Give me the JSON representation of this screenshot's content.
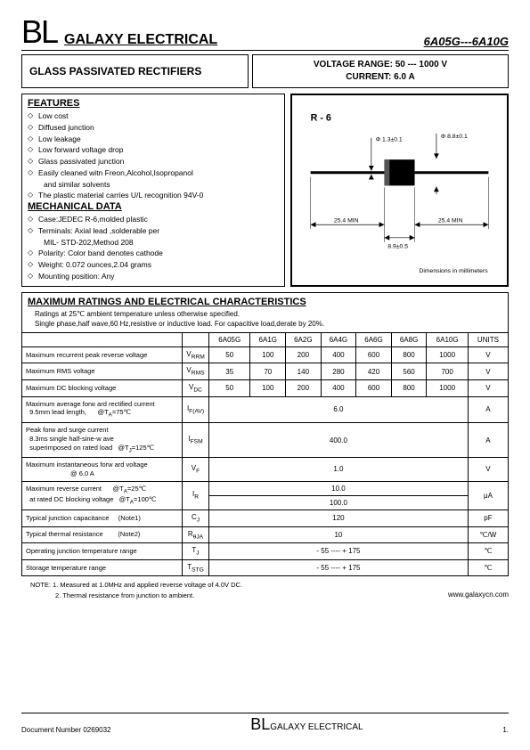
{
  "header": {
    "logo": "BL",
    "company": "GALAXY ELECTRICAL",
    "part_range": "6A05G---6A10G"
  },
  "title": "GLASS PASSIVATED RECTIFIERS",
  "specs": {
    "voltage_label": "VOLTAGE RANGE:",
    "voltage_value": "50 --- 1000 V",
    "current_label": "CURRENT:",
    "current_value": "6.0 A"
  },
  "features": {
    "heading": "FEATURES",
    "items": [
      "Low cost",
      "Diffused junction",
      "Low leakage",
      "Low forward voltage drop",
      "Glass passivated junction",
      "Easily cleaned witn Freon,Alcohol,Isopropanol",
      "and similar solvents",
      "The plastic material carries U/L recognition 94V-0"
    ]
  },
  "mechanical": {
    "heading": "MECHANICAL DATA",
    "items": [
      "Case:JEDEC R-6,molded plastic",
      "Terminals: Axial lead ,solderable per",
      "MIL- STD-202,Method 208",
      "Polarity: Color band denotes cathode",
      "Weight: 0.072 ounces,2.04 grams",
      "Mounting position: Any"
    ]
  },
  "diagram": {
    "package_label": "R - 6",
    "lead_dia": "Φ 1.3±0.1",
    "body_dia": "Φ 8.8±0.1",
    "lead_len_left": "25.4 MIN",
    "lead_len_right": "25.4 MIN",
    "body_len": "8.9±0.5",
    "units": "Dimensions in millimeters"
  },
  "ratings": {
    "heading": "MAXIMUM RATINGS AND ELECTRICAL CHARACTERISTICS",
    "cond1": "Ratings at 25℃ ambient temperature unless otherwise specified.",
    "cond2": "Single phase,half wave,60 Hz,resistive or inductive load. For capacitive load,derate by 20%.",
    "columns": [
      "6A05G",
      "6A1G",
      "6A2G",
      "6A4G",
      "6A6G",
      "6A8G",
      "6A10G"
    ],
    "units_label": "UNITS",
    "rows": [
      {
        "param": "Maximum recurrent peak reverse voltage",
        "sym": "V<sub>RRM</sub>",
        "vals": [
          "50",
          "100",
          "200",
          "400",
          "600",
          "800",
          "1000"
        ],
        "unit": "V"
      },
      {
        "param": "Maximum RMS voltage",
        "sym": "V<sub>RMS</sub>",
        "vals": [
          "35",
          "70",
          "140",
          "280",
          "420",
          "560",
          "700"
        ],
        "unit": "V"
      },
      {
        "param": "Maximum DC blocking voltage",
        "sym": "V<sub>DC</sub>",
        "vals": [
          "50",
          "100",
          "200",
          "400",
          "600",
          "800",
          "1000"
        ],
        "unit": "V"
      },
      {
        "param": "Maximum average forw ard rectified current<br>&nbsp;&nbsp;9.5mm lead length,&nbsp;&nbsp;&nbsp;&nbsp;&nbsp;&nbsp;@T<sub>A</sub>=75℃",
        "sym": "I<sub>F(AV)</sub>",
        "span": "6.0",
        "unit": "A"
      },
      {
        "param": "Peak forw ard surge current<br>&nbsp;&nbsp;8.3ms single half-sine-w ave<br>&nbsp;&nbsp;superimposed on rated load &nbsp;&nbsp;@T<sub>J</sub>=125℃",
        "sym": "I<sub>FSM</sub>",
        "span": "400.0",
        "unit": "A"
      },
      {
        "param": "Maximum instantaneous forw ard voltage<br>&nbsp;&nbsp;&nbsp;&nbsp;&nbsp;&nbsp;&nbsp;&nbsp;&nbsp;&nbsp;&nbsp;&nbsp;&nbsp;&nbsp;&nbsp;&nbsp;&nbsp;&nbsp;&nbsp;&nbsp;&nbsp;&nbsp;&nbsp;&nbsp;@ 6.0 A",
        "sym": "V<sub>F</sub>",
        "span": "1.0",
        "unit": "V"
      },
      {
        "param": "Maximum reverse current &nbsp;&nbsp;&nbsp;&nbsp;&nbsp;@T<sub>A</sub>=25℃<br>&nbsp;&nbsp;at rated DC blocking voltage &nbsp;&nbsp;@T<sub>A</sub>=100℃",
        "sym": "I<sub>R</sub>",
        "span2": [
          "10.0",
          "100.0"
        ],
        "unit": "μA"
      },
      {
        "param": "Typical junction capacitance &nbsp;&nbsp;&nbsp;&nbsp;(Note1)",
        "sym": "C<sub>J</sub>",
        "span": "120",
        "unit": "pF"
      },
      {
        "param": "Typical thermal resistance &nbsp;&nbsp;&nbsp;&nbsp;&nbsp;&nbsp;&nbsp;(Note2)",
        "sym": "R<sub>θJA</sub>",
        "span": "10",
        "unit": "℃/W"
      },
      {
        "param": "Operating junction temperature range",
        "sym": "T<sub>J</sub>",
        "span": "- 55 ---- + 175",
        "unit": "℃"
      },
      {
        "param": "Storage temperature range",
        "sym": "T<sub>STG</sub>",
        "span": "- 55 ---- + 175",
        "unit": "℃"
      }
    ]
  },
  "notes": {
    "n1": "NOTE: 1. Measured at 1.0MHz and applied reverse voltage of 4.0V DC.",
    "n2": "2. Thermal resistance from junction to ambient."
  },
  "url": "www.galaxycn.com",
  "footer": {
    "docnum": "Document Number 0269032",
    "center_logo": "BL",
    "center_text": "GALAXY ELECTRICAL",
    "page": "1."
  }
}
